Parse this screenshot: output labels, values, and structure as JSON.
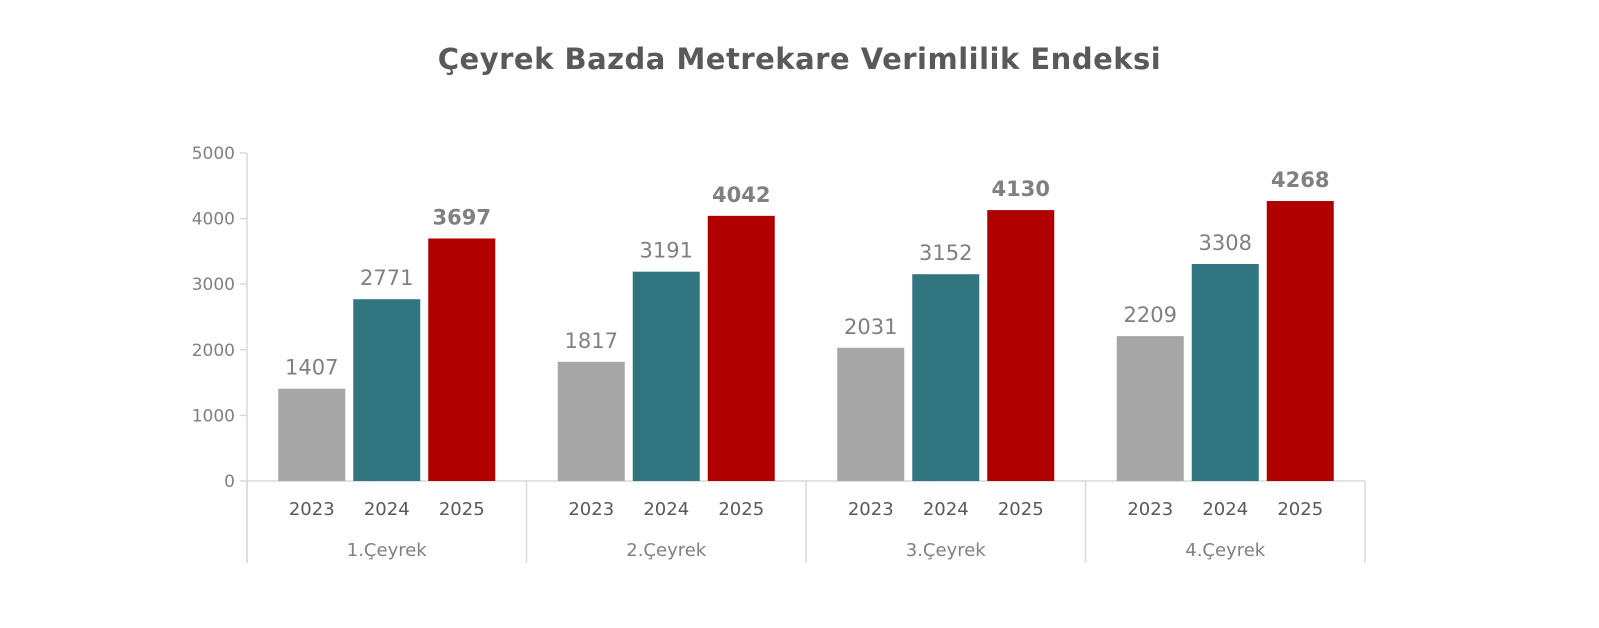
{
  "chart_data": {
    "type": "bar",
    "title": "Çeyrek Bazda Metrekare Verimlilik Endeksi",
    "xlabel": "",
    "ylabel": "",
    "ylim": [
      0,
      5000
    ],
    "y_ticks": [
      "0",
      "1000",
      "2000",
      "3000",
      "4000",
      "5000"
    ],
    "grid": false,
    "legend": "none",
    "groups": [
      {
        "label": "1.Çeyrek",
        "bars": [
          {
            "category": "2023",
            "value": 1407,
            "label": "1407"
          },
          {
            "category": "2024",
            "value": 2771,
            "label": "2771"
          },
          {
            "category": "2025",
            "value": 3697,
            "label": "3697"
          }
        ]
      },
      {
        "label": "2.Çeyrek",
        "bars": [
          {
            "category": "2023",
            "value": 1817,
            "label": "1817"
          },
          {
            "category": "2024",
            "value": 3191,
            "label": "3191"
          },
          {
            "category": "2025",
            "value": 4042,
            "label": "4042"
          }
        ]
      },
      {
        "label": "3.Çeyrek",
        "bars": [
          {
            "category": "2023",
            "value": 2031,
            "label": "2031"
          },
          {
            "category": "2024",
            "value": 3152,
            "label": "3152"
          },
          {
            "category": "2025",
            "value": 4130,
            "label": "4130"
          }
        ]
      },
      {
        "label": "4.Çeyrek",
        "bars": [
          {
            "category": "2023",
            "value": 2209,
            "label": "2209"
          },
          {
            "category": "2024",
            "value": 3308,
            "label": "3308"
          },
          {
            "category": "2025",
            "value": 4268,
            "label": "4268"
          }
        ]
      }
    ],
    "colors": {
      "2023": "#a6a6a6",
      "2024": "#317581",
      "2025": "#b00000"
    },
    "bold_label_category": "2025"
  }
}
